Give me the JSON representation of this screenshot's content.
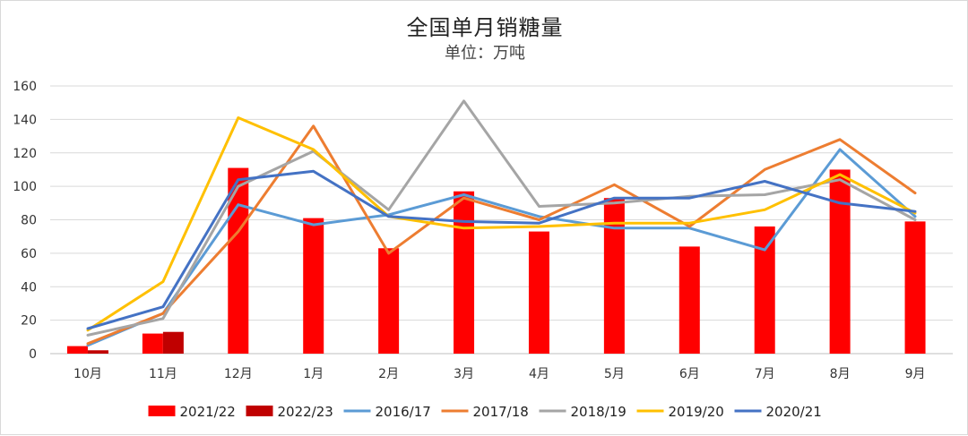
{
  "chart_data": {
    "type": "bar",
    "title": "全国单月销糖量",
    "subtitle": "单位：万吨",
    "categories": [
      "10月",
      "11月",
      "12月",
      "1月",
      "2月",
      "3月",
      "4月",
      "5月",
      "6月",
      "7月",
      "8月",
      "9月"
    ],
    "ylim": [
      0,
      160
    ],
    "yticks": [
      0,
      20,
      40,
      60,
      80,
      100,
      120,
      140,
      160
    ],
    "grid": true,
    "legend_position": "bottom",
    "bar_series": [
      {
        "name": "2021/22",
        "color": "#ff0000",
        "values": [
          4.5,
          12,
          111,
          81,
          63,
          97,
          73,
          93,
          64,
          76,
          110,
          79
        ]
      },
      {
        "name": "2022/23",
        "color": "#c00000",
        "values": [
          2,
          13,
          null,
          null,
          null,
          null,
          null,
          null,
          null,
          null,
          null,
          null
        ]
      }
    ],
    "line_series": [
      {
        "name": "2016/17",
        "color": "#5b9bd5",
        "values": [
          5,
          24,
          89,
          77,
          83,
          95,
          82,
          75,
          75,
          62,
          122,
          82
        ]
      },
      {
        "name": "2017/18",
        "color": "#ed7d31",
        "values": [
          6,
          24,
          73,
          136,
          60,
          93,
          80,
          101,
          76,
          110,
          128,
          96
        ]
      },
      {
        "name": "2018/19",
        "color": "#a5a5a5",
        "values": [
          11,
          21,
          100,
          121,
          86,
          151,
          88,
          90,
          94,
          95,
          104,
          80
        ]
      },
      {
        "name": "2019/20",
        "color": "#ffc000",
        "values": [
          14,
          43,
          141,
          122,
          82,
          75,
          76,
          78,
          78,
          86,
          107,
          84
        ]
      },
      {
        "name": "2020/21",
        "color": "#4472c4",
        "values": [
          15,
          28,
          104,
          109,
          82,
          79,
          78,
          93,
          93,
          103,
          90,
          85
        ]
      }
    ]
  }
}
